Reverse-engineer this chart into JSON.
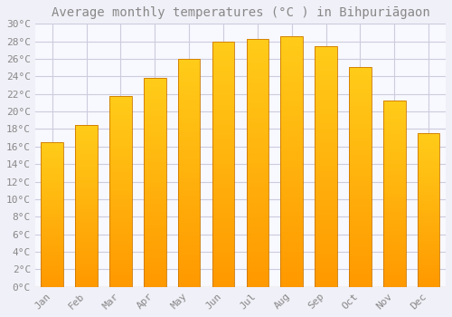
{
  "title": "Average monthly temperatures (°C ) in Bihpuriāgaon",
  "months": [
    "Jan",
    "Feb",
    "Mar",
    "Apr",
    "May",
    "Jun",
    "Jul",
    "Aug",
    "Sep",
    "Oct",
    "Nov",
    "Dec"
  ],
  "values": [
    16.5,
    18.5,
    21.8,
    23.8,
    26.0,
    28.0,
    28.3,
    28.6,
    27.4,
    25.1,
    21.3,
    17.5
  ],
  "bar_color_top": "#FFBB00",
  "bar_color_bottom": "#FF9900",
  "bar_edge_color": "#CC7700",
  "background_color": "#F0F0F8",
  "plot_bg_color": "#F8F8FF",
  "grid_color": "#CCCCDD",
  "text_color": "#888888",
  "ylim": [
    0,
    30
  ],
  "ytick_step": 2,
  "title_fontsize": 10,
  "tick_fontsize": 8,
  "bar_width": 0.65
}
